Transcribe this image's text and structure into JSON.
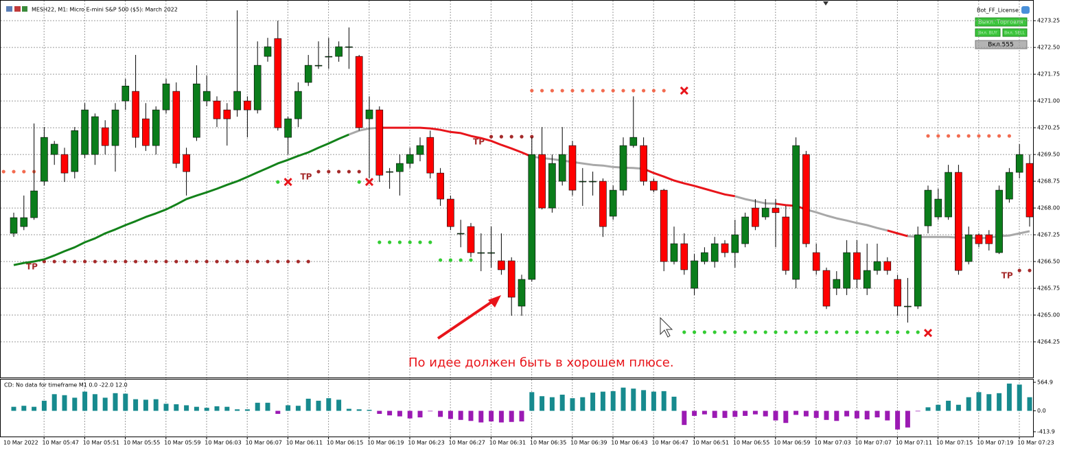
{
  "window": {
    "title": "MESH22, M1:  Micro E-mini S&P 500 ($5): March 2022"
  },
  "panel": {
    "name": "Bot_FF_License",
    "buttons": [
      "Выкл. Торговля",
      "Вкл. BUY",
      "Вкл. SELL",
      "Вкл.555"
    ]
  },
  "price_axis": {
    "ylim": [
      4263.25,
      4273.83
    ],
    "yticks": [
      4273.25,
      {
        "value": 4272.5,
        "label": "4272.50"
      },
      4271.75,
      {
        "value": 4271,
        "label": "4271.00"
      },
      4270.25,
      {
        "value": 4269.5,
        "label": "4269.50"
      },
      4268.75,
      {
        "value": 4268,
        "label": "4268.00"
      },
      4267.25,
      {
        "value": 4266.5,
        "label": "4266.50"
      },
      4265.75,
      {
        "value": 4265,
        "label": "4265.00"
      },
      4264.25
    ],
    "grid": true
  },
  "up_color": "#0b7d1b",
  "down_color": "#ff0000",
  "candles": [
    [
      4267.29,
      4267.87,
      4267.19,
      4267.73
    ],
    [
      4267.48,
      4268.35,
      4267.38,
      4267.73
    ],
    [
      4267.73,
      4270.37,
      4267.67,
      4268.48
    ],
    [
      4268.75,
      4270.27,
      4268.63,
      4269.98
    ],
    [
      4269.5,
      4269.88,
      4269.21,
      4269.79
    ],
    [
      4269.5,
      4269.69,
      4268.73,
      4268.98
    ],
    [
      4269.02,
      4270.27,
      4268.83,
      4270.17
    ],
    [
      4269.5,
      4270.94,
      4269.4,
      4270.75
    ],
    [
      4269.5,
      4270.65,
      4269.21,
      4270.56
    ],
    [
      4270.25,
      4270.46,
      4269.5,
      4269.75
    ],
    [
      4269.75,
      4270.94,
      4269.02,
      4270.75
    ],
    [
      4271,
      4271.62,
      4270.75,
      4271.42
    ],
    [
      4271.27,
      4272.29,
      4269.69,
      4269.98
    ],
    [
      4270.5,
      4270.94,
      4269.6,
      4269.75
    ],
    [
      4269.75,
      4270.85,
      4269.5,
      4270.75
    ],
    [
      4270.75,
      4271.62,
      4270.65,
      4271.48
    ],
    [
      4271.27,
      4271.52,
      4269.12,
      4269.25
    ],
    [
      4269.5,
      4269.69,
      4268.35,
      4269.02
    ],
    [
      4269.98,
      4272,
      4269.88,
      4271.48
    ],
    [
      4271,
      4271.71,
      4270.85,
      4271.27
    ],
    [
      4271,
      4271.13,
      4270.27,
      4270.5
    ],
    [
      4270.75,
      4270.94,
      4269.75,
      4270.5
    ],
    [
      4270.75,
      4273.54,
      4270.56,
      4271.27
    ],
    [
      4271,
      4271.13,
      4269.98,
      4270.75
    ],
    [
      4270.75,
      4272.67,
      4270.65,
      4272
    ],
    [
      4272.25,
      4272.77,
      4272.1,
      4272.52
    ],
    [
      4272.75,
      4273.25,
      4270.17,
      4270.25
    ],
    [
      4269.98,
      4270.56,
      4269.5,
      4270.5
    ],
    [
      4270.5,
      4271.52,
      4270.27,
      4271.27
    ],
    [
      4271.52,
      4272.29,
      4271.42,
      4272
    ],
    [
      4271.98,
      4272.67,
      4271.9,
      4272
    ],
    [
      4272.25,
      4272.77,
      4271.9,
      4272.25
    ],
    [
      4272.25,
      4272.67,
      4272.1,
      4272.52
    ],
    [
      4272.52,
      4273.06,
      4271.9,
      4272.52
    ],
    [
      4272.25,
      4272.29,
      4270.17,
      4270.25
    ],
    [
      4270.5,
      4271.13,
      4268.83,
      4270.75
    ],
    [
      4270.75,
      4270.85,
      4268.73,
      4268.92
    ],
    [
      4269.02,
      4269.12,
      4268.54,
      4269.02
    ],
    [
      4269.02,
      4269.5,
      4268.35,
      4269.25
    ],
    [
      4269.25,
      4269.69,
      4269.12,
      4269.5
    ],
    [
      4269.5,
      4269.98,
      4269.31,
      4269.75
    ],
    [
      4269.98,
      4270.17,
      4268.83,
      4268.98
    ],
    [
      4268.98,
      4269.12,
      4268.06,
      4268.25
    ],
    [
      4268.25,
      4268.35,
      4267.38,
      4267.48
    ],
    [
      4267.29,
      4267.67,
      4266.9,
      4267.29
    ],
    [
      4267.48,
      4267.58,
      4266.62,
      4266.75
    ],
    [
      4266.75,
      4267.29,
      4266.23,
      4266.75
    ],
    [
      4266.75,
      4267.48,
      4266.33,
      4266.75
    ],
    [
      4266.52,
      4267.29,
      4266.13,
      4266.27
    ],
    [
      4266.52,
      4266.62,
      4264.98,
      4265.5
    ],
    [
      4265.25,
      4266.13,
      4264.98,
      4266
    ],
    [
      4266,
      4269.98,
      4265.94,
      4269.5
    ],
    [
      4269.5,
      4270.27,
      4267.96,
      4268
    ],
    [
      4268,
      4269.5,
      4267.87,
      4269.25
    ],
    [
      4268.75,
      4270.27,
      4268.63,
      4269.5
    ],
    [
      4269.75,
      4269.88,
      4268.35,
      4268.5
    ],
    [
      4268.75,
      4269.12,
      4268.06,
      4268.75
    ],
    [
      4268.75,
      4269.02,
      4268.35,
      4268.75
    ],
    [
      4268.75,
      4268.83,
      4267.19,
      4267.48
    ],
    [
      4267.77,
      4268.63,
      4267.67,
      4268.5
    ],
    [
      4268.5,
      4269.98,
      4268.35,
      4269.75
    ],
    [
      4269.75,
      4271.13,
      4269.69,
      4269.98
    ],
    [
      4269.75,
      4269.98,
      4268.63,
      4268.75
    ],
    [
      4268.75,
      4268.83,
      4268.44,
      4268.5
    ],
    [
      4268.5,
      4268.54,
      4266.23,
      4266.5
    ],
    [
      4266.5,
      4267.48,
      4266.42,
      4267
    ],
    [
      4267,
      4267.29,
      4266.13,
      4266.27
    ],
    [
      4265.75,
      4266.71,
      4265.56,
      4266.52
    ],
    [
      4266.5,
      4266.9,
      4266.42,
      4266.75
    ],
    [
      4266.5,
      4267.19,
      4266.33,
      4267
    ],
    [
      4267,
      4267.1,
      4266.62,
      4266.75
    ],
    [
      4266.75,
      4267.67,
      4266.33,
      4267.25
    ],
    [
      4267,
      4267.87,
      4266.9,
      4267.75
    ],
    [
      4268,
      4268.25,
      4267.38,
      4267.48
    ],
    [
      4267.75,
      4268.25,
      4267.67,
      4268
    ],
    [
      4268,
      4268.25,
      4266.9,
      4267.87
    ],
    [
      4267.75,
      4268.06,
      4266.13,
      4266.25
    ],
    [
      4266,
      4269.98,
      4265.75,
      4269.75
    ],
    [
      4269.5,
      4269.6,
      4266.9,
      4267
    ],
    [
      4266.75,
      4267,
      4266.13,
      4266.25
    ],
    [
      4266.25,
      4266.33,
      4265.17,
      4265.25
    ],
    [
      4265.75,
      4266.23,
      4265.56,
      4266
    ],
    [
      4265.75,
      4267.1,
      4265.56,
      4266.75
    ],
    [
      4266.75,
      4267.1,
      4265.75,
      4266
    ],
    [
      4265.75,
      4267,
      4265.56,
      4266.25
    ],
    [
      4266.25,
      4267,
      4266.13,
      4266.5
    ],
    [
      4266.5,
      4266.62,
      4266.13,
      4266.25
    ],
    [
      4266,
      4266.13,
      4264.98,
      4265.25
    ],
    [
      4265.25,
      4266.04,
      4264.79,
      4265.25
    ],
    [
      4265.25,
      4267.48,
      4265.17,
      4267.25
    ],
    [
      4267.5,
      4268.63,
      4267.29,
      4268.5
    ],
    [
      4267.75,
      4268.54,
      4267.67,
      4268.25
    ],
    [
      4267.75,
      4269.21,
      4267.67,
      4269
    ],
    [
      4269,
      4269.21,
      4266.13,
      4266.25
    ],
    [
      4266.5,
      4267.48,
      4266.42,
      4267.25
    ],
    [
      4267.25,
      4267.29,
      4266.9,
      4267
    ],
    [
      4267.25,
      4267.38,
      4266.81,
      4267
    ],
    [
      4266.75,
      4268.63,
      4266.71,
      4268.5
    ],
    [
      4268.25,
      4269.12,
      4268.15,
      4269
    ],
    [
      4269,
      4269.79,
      4268.83,
      4269.5
    ],
    [
      4269.25,
      4269.5,
      4267.48,
      4267.75
    ]
  ],
  "ma": {
    "values": [
      4266.4,
      4266.46,
      4266.5,
      4266.56,
      4266.67,
      4266.79,
      4266.9,
      4267.04,
      4267.15,
      4267.29,
      4267.4,
      4267.52,
      4267.63,
      4267.75,
      4267.85,
      4267.96,
      4268.1,
      4268.25,
      4268.35,
      4268.44,
      4268.54,
      4268.65,
      4268.75,
      4268.87,
      4269,
      4269.12,
      4269.25,
      4269.35,
      4269.46,
      4269.56,
      4269.69,
      4269.81,
      4269.94,
      4270.06,
      4270.17,
      4270.23,
      4270.25,
      4270.25,
      4270.25,
      4270.25,
      4270.25,
      4270.23,
      4270.19,
      4270.13,
      4270.1,
      4270.02,
      4269.96,
      4269.88,
      4269.77,
      4269.67,
      4269.56,
      4269.44,
      4269.4,
      4269.37,
      4269.33,
      4269.29,
      4269.25,
      4269.21,
      4269.19,
      4269.15,
      4269.13,
      4269.12,
      4269.1,
      4268.98,
      4268.88,
      4268.77,
      4268.69,
      4268.62,
      4268.54,
      4268.46,
      4268.38,
      4268.33,
      4268.25,
      4268.19,
      4268.13,
      4268.12,
      4268.08,
      4268.06,
      4267.96,
      4267.88,
      4267.79,
      4267.71,
      4267.65,
      4267.58,
      4267.52,
      4267.44,
      4267.37,
      4267.29,
      4267.21,
      4267.19,
      4267.19,
      4267.19,
      4267.19,
      4267.17,
      4267.17,
      4267.15,
      4267.17,
      4267.21,
      4267.23,
      4267.29,
      4267.35
    ],
    "segments": [
      {
        "color": "#13821a",
        "from": 0,
        "to": 33
      },
      {
        "color": "#a8a8a8",
        "from": 33,
        "to": 36
      },
      {
        "color": "#e8141a",
        "from": 36,
        "to": 51
      },
      {
        "color": "#a8a8a8",
        "from": 51,
        "to": 62
      },
      {
        "color": "#e8141a",
        "from": 62,
        "to": 71
      },
      {
        "color": "#a8a8a8",
        "from": 71,
        "to": 75
      },
      {
        "color": "#e8141a",
        "from": 75,
        "to": 78
      },
      {
        "color": "#a8a8a8",
        "from": 78,
        "to": 86
      },
      {
        "color": "#e8141a",
        "from": 86,
        "to": 88
      },
      {
        "color": "#a8a8a8",
        "from": 88,
        "to": 100
      }
    ]
  },
  "levels": [
    {
      "color": "#f26b50",
      "price": 4271.29,
      "from": 51,
      "to": 64
    },
    {
      "color": "#f26b50",
      "price": 4269.02,
      "from": -1,
      "to": 2
    },
    {
      "color": "#a52a2a",
      "price": 4266.5,
      "from": 3,
      "to": 29,
      "label": "TP"
    },
    {
      "color": "#a52a2a",
      "price": 4269.02,
      "from": 30,
      "to": 34,
      "label": "TP"
    },
    {
      "color": "#a52a2a",
      "price": 4270,
      "from": 47,
      "to": 51,
      "label": "TP"
    },
    {
      "color": "#a52a2a",
      "price": 4266.25,
      "from": 99,
      "to": 100,
      "label": "TP"
    },
    {
      "color": "#33cc33",
      "price": 4268.73,
      "from": 26,
      "to": 26
    },
    {
      "color": "#33cc33",
      "price": 4268.73,
      "from": 34,
      "to": 34
    },
    {
      "color": "#33cc33",
      "price": 4267.04,
      "from": 36,
      "to": 41
    },
    {
      "color": "#33cc33",
      "price": 4266.54,
      "from": 42,
      "to": 45
    },
    {
      "color": "#33cc33",
      "price": 4264.52,
      "from": 66,
      "to": 89
    },
    {
      "color": "#f26b50",
      "price": 4270.02,
      "from": 90,
      "to": 98
    }
  ],
  "crosses": [
    {
      "price": 4271.29,
      "candle": 66
    },
    {
      "price": 4268.73,
      "candle": 27
    },
    {
      "price": 4268.73,
      "candle": 35
    },
    {
      "price": 4264.5,
      "candle": 90
    }
  ],
  "annotation": "По идее должен быть в хорошем плюсе.",
  "indicator": {
    "label": "CD: No data for timeframe M1 0.0 -22.0 12.0",
    "ylim": [
      -509,
      633
    ],
    "yticks": [
      564.9,
      {
        "value": 0,
        "label": "0.0"
      },
      -413.9
    ],
    "pos_color": "#178a8e",
    "neg_color": "#9b1ab3",
    "values": [
      80,
      100,
      80,
      200,
      330,
      310,
      260,
      380,
      330,
      260,
      350,
      340,
      230,
      220,
      230,
      140,
      130,
      110,
      80,
      60,
      90,
      80,
      30,
      30,
      160,
      160,
      -60,
      110,
      100,
      240,
      200,
      250,
      220,
      40,
      30,
      20,
      -60,
      -90,
      -110,
      -150,
      -130,
      -10,
      -120,
      -160,
      -180,
      -200,
      -230,
      -210,
      -230,
      -220,
      -210,
      370,
      290,
      270,
      320,
      250,
      270,
      360,
      380,
      390,
      460,
      440,
      410,
      380,
      390,
      280,
      -280,
      -100,
      -70,
      -140,
      -140,
      -120,
      -100,
      -70,
      -110,
      -190,
      -240,
      -80,
      -110,
      -140,
      -180,
      -200,
      -110,
      -150,
      -170,
      -130,
      -190,
      -370,
      -330,
      -10,
      70,
      120,
      200,
      120,
      270,
      370,
      330,
      350,
      540,
      520,
      270
    ]
  },
  "time_axis": {
    "start": "10 Mar 2022",
    "labels": [
      {
        "label": "10 Mar 05:47",
        "candle": 4
      },
      {
        "label": "10 Mar 05:51",
        "candle": 8
      },
      {
        "label": "10 Mar 05:55",
        "candle": 12
      },
      {
        "label": "10 Mar 05:59",
        "candle": 16
      },
      {
        "label": "10 Mar 06:03",
        "candle": 20
      },
      {
        "label": "10 Mar 06:07",
        "candle": 24
      },
      {
        "label": "10 Mar 06:11",
        "candle": 28
      },
      {
        "label": "10 Mar 06:15",
        "candle": 32
      },
      {
        "label": "10 Mar 06:19",
        "candle": 36
      },
      {
        "label": "10 Mar 06:23",
        "candle": 40
      },
      {
        "label": "10 Mar 06:27",
        "candle": 44
      },
      {
        "label": "10 Mar 06:31",
        "candle": 48
      },
      {
        "label": "10 Mar 06:35",
        "candle": 52
      },
      {
        "label": "10 Mar 06:39",
        "candle": 56
      },
      {
        "label": "10 Mar 06:43",
        "candle": 60
      },
      {
        "label": "10 Mar 06:47",
        "candle": 64
      },
      {
        "label": "10 Mar 06:51",
        "candle": 68
      },
      {
        "label": "10 Mar 06:55",
        "candle": 72
      },
      {
        "label": "10 Mar 06:59",
        "candle": 76
      },
      {
        "label": "10 Mar 07:03",
        "candle": 80
      },
      {
        "label": "10 Mar 07:07",
        "candle": 84
      },
      {
        "label": "10 Mar 07:11",
        "candle": 88
      },
      {
        "label": "10 Mar 07:15",
        "candle": 92
      },
      {
        "label": "10 Mar 07:19",
        "candle": 96
      },
      {
        "label": "10 Mar 07:23",
        "candle": 100
      }
    ]
  }
}
